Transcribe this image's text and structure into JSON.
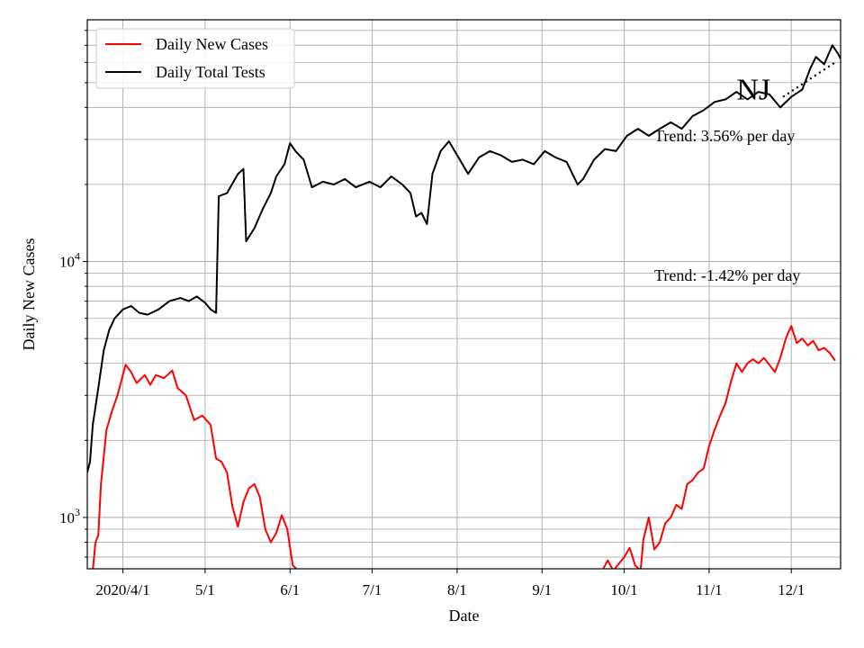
{
  "chart_data": {
    "type": "line",
    "title": "",
    "xlabel": "Date",
    "ylabel": "Daily New Cases",
    "yscale": "log",
    "ylim": [
      630,
      88000
    ],
    "xlim": [
      "2020-03-19",
      "2020-12-19"
    ],
    "grid": true,
    "grid_minor": true,
    "legend_position": "upper-left",
    "x_ticks": [
      {
        "date": "2020-04-01",
        "label": "2020/4/1"
      },
      {
        "date": "2020-05-01",
        "label": "5/1"
      },
      {
        "date": "2020-06-01",
        "label": "6/1"
      },
      {
        "date": "2020-07-01",
        "label": "7/1"
      },
      {
        "date": "2020-08-01",
        "label": "8/1"
      },
      {
        "date": "2020-09-01",
        "label": "9/1"
      },
      {
        "date": "2020-10-01",
        "label": "10/1"
      },
      {
        "date": "2020-11-01",
        "label": "11/1"
      },
      {
        "date": "2020-12-01",
        "label": "12/1"
      }
    ],
    "y_ticks": [
      {
        "value": 1000,
        "base": "10",
        "exp": "3"
      },
      {
        "value": 10000,
        "base": "10",
        "exp": "4"
      }
    ],
    "series": [
      {
        "name": "Daily New Cases",
        "color": "#ff0000",
        "points": [
          [
            "2020-03-21",
            620
          ],
          [
            "2020-03-22",
            800
          ],
          [
            "2020-03-23",
            850
          ],
          [
            "2020-03-24",
            1350
          ],
          [
            "2020-03-26",
            2200
          ],
          [
            "2020-03-28",
            2600
          ],
          [
            "2020-03-30",
            3000
          ],
          [
            "2020-04-02",
            3950
          ],
          [
            "2020-04-04",
            3700
          ],
          [
            "2020-04-06",
            3350
          ],
          [
            "2020-04-09",
            3600
          ],
          [
            "2020-04-11",
            3300
          ],
          [
            "2020-04-13",
            3600
          ],
          [
            "2020-04-16",
            3500
          ],
          [
            "2020-04-19",
            3750
          ],
          [
            "2020-04-21",
            3200
          ],
          [
            "2020-04-24",
            3000
          ],
          [
            "2020-04-27",
            2400
          ],
          [
            "2020-04-30",
            2500
          ],
          [
            "2020-05-03",
            2300
          ],
          [
            "2020-05-05",
            1700
          ],
          [
            "2020-05-07",
            1650
          ],
          [
            "2020-05-09",
            1500
          ],
          [
            "2020-05-11",
            1100
          ],
          [
            "2020-05-13",
            920
          ],
          [
            "2020-05-15",
            1150
          ],
          [
            "2020-05-17",
            1300
          ],
          [
            "2020-05-19",
            1350
          ],
          [
            "2020-05-21",
            1200
          ],
          [
            "2020-05-23",
            900
          ],
          [
            "2020-05-25",
            800
          ],
          [
            "2020-05-27",
            870
          ],
          [
            "2020-05-29",
            1020
          ],
          [
            "2020-05-31",
            900
          ],
          [
            "2020-06-02",
            650
          ],
          [
            "2020-06-04",
            620
          ],
          [
            "2020-09-23",
            620
          ],
          [
            "2020-09-25",
            680
          ],
          [
            "2020-09-27",
            620
          ],
          [
            "2020-10-01",
            700
          ],
          [
            "2020-10-03",
            760
          ],
          [
            "2020-10-05",
            650
          ],
          [
            "2020-10-07",
            620
          ],
          [
            "2020-10-08",
            820
          ],
          [
            "2020-10-10",
            1000
          ],
          [
            "2020-10-12",
            750
          ],
          [
            "2020-10-14",
            800
          ],
          [
            "2020-10-16",
            950
          ],
          [
            "2020-10-18",
            1000
          ],
          [
            "2020-10-20",
            1120
          ],
          [
            "2020-10-22",
            1080
          ],
          [
            "2020-10-24",
            1350
          ],
          [
            "2020-10-26",
            1400
          ],
          [
            "2020-10-28",
            1500
          ],
          [
            "2020-10-30",
            1550
          ],
          [
            "2020-11-01",
            1900
          ],
          [
            "2020-11-03",
            2200
          ],
          [
            "2020-11-05",
            2500
          ],
          [
            "2020-11-07",
            2800
          ],
          [
            "2020-11-09",
            3400
          ],
          [
            "2020-11-11",
            4000
          ],
          [
            "2020-11-13",
            3700
          ],
          [
            "2020-11-15",
            4000
          ],
          [
            "2020-11-17",
            4150
          ],
          [
            "2020-11-19",
            4000
          ],
          [
            "2020-11-21",
            4200
          ],
          [
            "2020-11-23",
            3950
          ],
          [
            "2020-11-25",
            3700
          ],
          [
            "2020-11-27",
            4200
          ],
          [
            "2020-11-29",
            5000
          ],
          [
            "2020-12-01",
            5600
          ],
          [
            "2020-12-03",
            4800
          ],
          [
            "2020-12-05",
            5000
          ],
          [
            "2020-12-07",
            4700
          ],
          [
            "2020-12-09",
            4900
          ],
          [
            "2020-12-11",
            4500
          ],
          [
            "2020-12-13",
            4600
          ],
          [
            "2020-12-15",
            4400
          ],
          [
            "2020-12-17",
            4100
          ]
        ]
      },
      {
        "name": "Daily Total Tests",
        "color": "#000000",
        "points": [
          [
            "2020-03-19",
            1500
          ],
          [
            "2020-03-20",
            1650
          ],
          [
            "2020-03-21",
            2300
          ],
          [
            "2020-03-23",
            3200
          ],
          [
            "2020-03-25",
            4500
          ],
          [
            "2020-03-27",
            5400
          ],
          [
            "2020-03-29",
            6000
          ],
          [
            "2020-04-01",
            6500
          ],
          [
            "2020-04-04",
            6700
          ],
          [
            "2020-04-07",
            6300
          ],
          [
            "2020-04-10",
            6200
          ],
          [
            "2020-04-14",
            6500
          ],
          [
            "2020-04-18",
            7000
          ],
          [
            "2020-04-22",
            7200
          ],
          [
            "2020-04-25",
            7000
          ],
          [
            "2020-04-28",
            7300
          ],
          [
            "2020-05-01",
            6900
          ],
          [
            "2020-05-03",
            6500
          ],
          [
            "2020-05-05",
            6300
          ],
          [
            "2020-05-06",
            18000
          ],
          [
            "2020-05-09",
            18500
          ],
          [
            "2020-05-13",
            22000
          ],
          [
            "2020-05-15",
            23000
          ],
          [
            "2020-05-16",
            12000
          ],
          [
            "2020-05-19",
            13500
          ],
          [
            "2020-05-22",
            16000
          ],
          [
            "2020-05-25",
            18500
          ],
          [
            "2020-05-27",
            21500
          ],
          [
            "2020-05-30",
            24000
          ],
          [
            "2020-06-01",
            29000
          ],
          [
            "2020-06-03",
            27000
          ],
          [
            "2020-06-06",
            25000
          ],
          [
            "2020-06-09",
            19500
          ],
          [
            "2020-06-13",
            20500
          ],
          [
            "2020-06-17",
            20000
          ],
          [
            "2020-06-21",
            21000
          ],
          [
            "2020-06-25",
            19500
          ],
          [
            "2020-06-30",
            20500
          ],
          [
            "2020-07-04",
            19500
          ],
          [
            "2020-07-08",
            21500
          ],
          [
            "2020-07-12",
            20000
          ],
          [
            "2020-07-15",
            18500
          ],
          [
            "2020-07-17",
            15000
          ],
          [
            "2020-07-19",
            15500
          ],
          [
            "2020-07-21",
            14000
          ],
          [
            "2020-07-23",
            22000
          ],
          [
            "2020-07-26",
            27000
          ],
          [
            "2020-07-29",
            29500
          ],
          [
            "2020-08-02",
            25000
          ],
          [
            "2020-08-05",
            22000
          ],
          [
            "2020-08-09",
            25500
          ],
          [
            "2020-08-13",
            27000
          ],
          [
            "2020-08-17",
            26000
          ],
          [
            "2020-08-21",
            24500
          ],
          [
            "2020-08-25",
            25000
          ],
          [
            "2020-08-29",
            24000
          ],
          [
            "2020-09-02",
            27000
          ],
          [
            "2020-09-06",
            25500
          ],
          [
            "2020-09-10",
            24500
          ],
          [
            "2020-09-14",
            20000
          ],
          [
            "2020-09-16",
            21000
          ],
          [
            "2020-09-20",
            25000
          ],
          [
            "2020-09-24",
            27500
          ],
          [
            "2020-09-28",
            27000
          ],
          [
            "2020-10-02",
            31000
          ],
          [
            "2020-10-06",
            33000
          ],
          [
            "2020-10-10",
            31000
          ],
          [
            "2020-10-14",
            33000
          ],
          [
            "2020-10-18",
            35000
          ],
          [
            "2020-10-22",
            33000
          ],
          [
            "2020-10-26",
            37000
          ],
          [
            "2020-10-30",
            39000
          ],
          [
            "2020-11-03",
            42000
          ],
          [
            "2020-11-07",
            43000
          ],
          [
            "2020-11-11",
            46000
          ],
          [
            "2020-11-15",
            43000
          ],
          [
            "2020-11-19",
            46000
          ],
          [
            "2020-11-23",
            45000
          ],
          [
            "2020-11-27",
            40000
          ],
          [
            "2020-12-01",
            44000
          ],
          [
            "2020-12-05",
            47000
          ],
          [
            "2020-12-08",
            57000
          ],
          [
            "2020-12-10",
            63000
          ],
          [
            "2020-12-13",
            59000
          ],
          [
            "2020-12-16",
            70000
          ],
          [
            "2020-12-18",
            65000
          ],
          [
            "2020-12-19",
            62000
          ]
        ]
      }
    ],
    "annotations": [
      {
        "text": "NJ",
        "date": "2020-11-11",
        "value": 43000,
        "size": "large"
      },
      {
        "text": "Trend: 3.56% per day",
        "date": "2020-10-12",
        "value": 29500,
        "size": "normal"
      },
      {
        "text": "Trend: -1.42% per day",
        "date": "2020-10-12",
        "value": 8400,
        "size": "normal"
      }
    ],
    "trend_line": {
      "style": "dotted",
      "color": "#000000",
      "from": [
        "2020-11-28",
        44000
      ],
      "to": [
        "2020-12-17",
        60000
      ]
    }
  }
}
